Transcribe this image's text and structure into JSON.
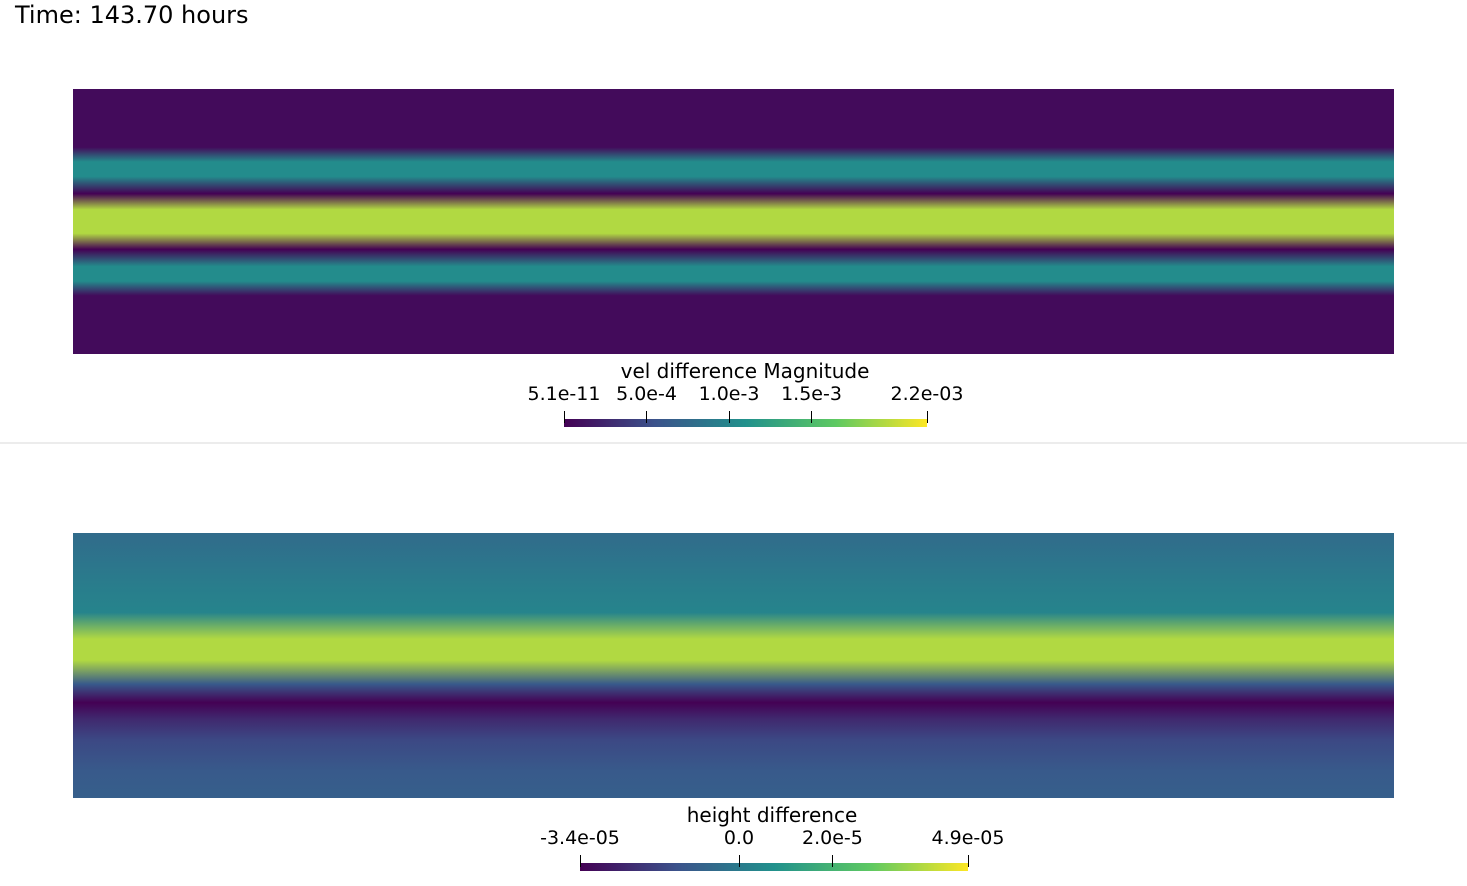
{
  "time_label": "Time: 143.70 hours",
  "colormap": {
    "name": "viridis",
    "stops": [
      "#440154",
      "#3b528b",
      "#21918c",
      "#5ec962",
      "#fde725"
    ]
  },
  "views": [
    {
      "name": "velocity-difference-view",
      "colorbar": {
        "title": "vel difference Magnitude",
        "range": [
          5.1e-11,
          0.0022
        ],
        "ticks": [
          {
            "label": "5.1e-11",
            "value": 5.1e-11
          },
          {
            "label": "5.0e-4",
            "value": 0.0005
          },
          {
            "label": "1.0e-3",
            "value": 0.001
          },
          {
            "label": "1.5e-3",
            "value": 0.0015
          },
          {
            "label": "2.2e-03",
            "value": 0.0022
          }
        ]
      },
      "field_bands": [
        {
          "y": 0.0,
          "value": 0.03
        },
        {
          "y": 0.22,
          "value": 0.03
        },
        {
          "y": 0.275,
          "value": 0.48
        },
        {
          "y": 0.33,
          "value": 0.48
        },
        {
          "y": 0.395,
          "value": 0.0
        },
        {
          "y": 0.455,
          "value": 0.88
        },
        {
          "y": 0.545,
          "value": 0.88
        },
        {
          "y": 0.605,
          "value": 0.0
        },
        {
          "y": 0.67,
          "value": 0.48
        },
        {
          "y": 0.725,
          "value": 0.48
        },
        {
          "y": 0.78,
          "value": 0.03
        },
        {
          "y": 1.0,
          "value": 0.03
        }
      ]
    },
    {
      "name": "height-difference-view",
      "colorbar": {
        "title": "height difference",
        "range": [
          -3.4e-05,
          4.9e-05
        ],
        "ticks": [
          {
            "label": "-3.4e-05",
            "value": -3.4e-05
          },
          {
            "label": "0.0",
            "value": 0.0
          },
          {
            "label": "2.0e-5",
            "value": 2e-05
          },
          {
            "label": "4.9e-05",
            "value": 4.9e-05
          }
        ]
      },
      "field_bands": [
        {
          "y": 0.0,
          "value": 0.35
        },
        {
          "y": 0.2,
          "value": 0.42
        },
        {
          "y": 0.3,
          "value": 0.45
        },
        {
          "y": 0.4,
          "value": 0.88
        },
        {
          "y": 0.48,
          "value": 0.88
        },
        {
          "y": 0.57,
          "value": 0.28
        },
        {
          "y": 0.64,
          "value": 0.0
        },
        {
          "y": 0.7,
          "value": 0.12
        },
        {
          "y": 0.78,
          "value": 0.22
        },
        {
          "y": 0.9,
          "value": 0.28
        },
        {
          "y": 1.0,
          "value": 0.3
        }
      ]
    }
  ]
}
